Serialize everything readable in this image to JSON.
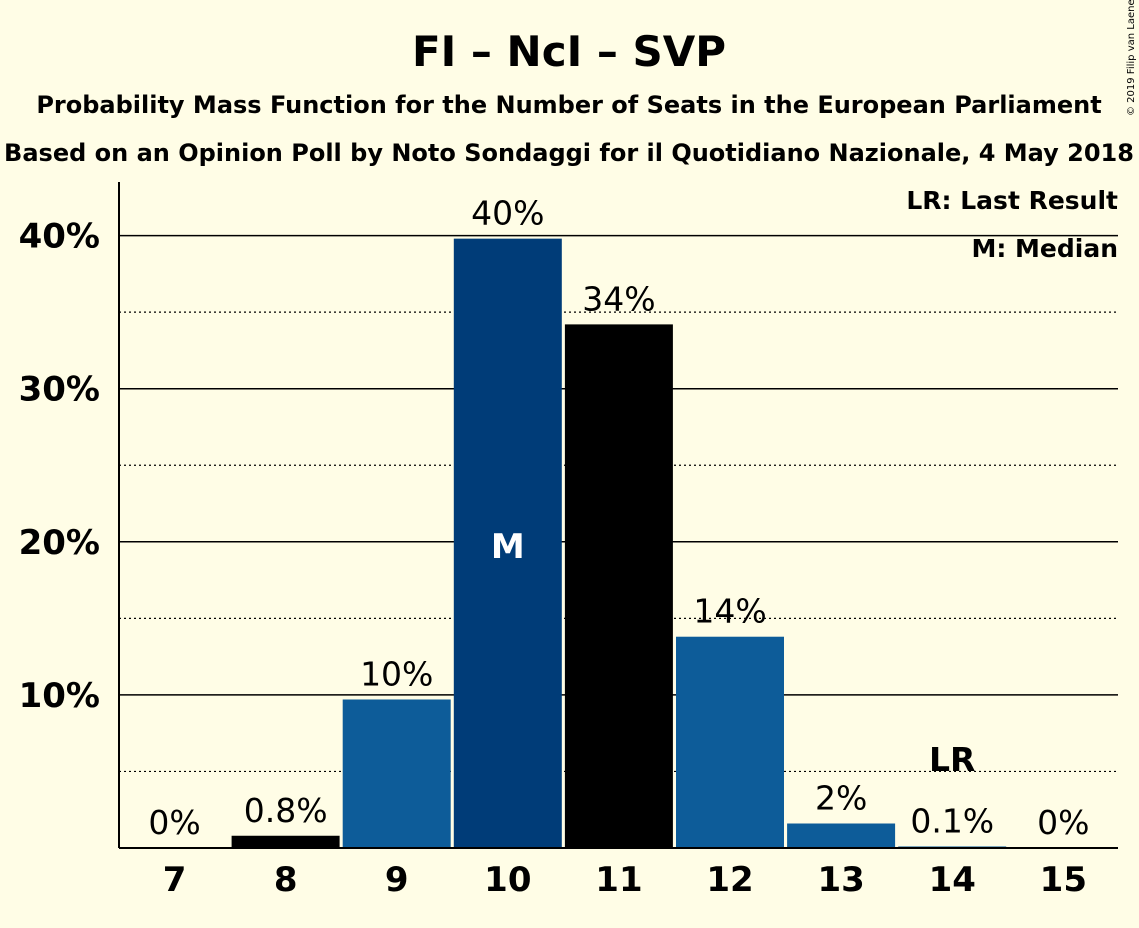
{
  "copyright": "© 2019 Filip van Laenen",
  "chart_data": {
    "type": "bar",
    "title": "FI – NcI – SVP",
    "subtitle_1": "Probability Mass Function for the Number of Seats in the European Parliament",
    "subtitle_2": "Based on an Opinion Poll by Noto Sondaggi for il Quotidiano Nazionale, 4 May 2018",
    "xlabel": "",
    "ylabel": "",
    "categories": [
      "7",
      "8",
      "9",
      "10",
      "11",
      "12",
      "13",
      "14",
      "15"
    ],
    "values": [
      0,
      0.8,
      9.7,
      39.8,
      34.2,
      13.8,
      1.6,
      0.1,
      0
    ],
    "value_labels": [
      "0%",
      "0.8%",
      "10%",
      "40%",
      "34%",
      "14%",
      "2%",
      "0.1%",
      "0%"
    ],
    "bar_colors": [
      "#0d5c99",
      "#000000",
      "#0d5c99",
      "#003c78",
      "#000000",
      "#0d5c99",
      "#0d5c99",
      "#0d5c99",
      "#0d5c99"
    ],
    "median_index": 3,
    "median_marker": "M",
    "last_result_index": 7,
    "last_result_marker": "LR",
    "ylim": [
      0,
      43.5
    ],
    "yticks": [
      10,
      20,
      30,
      40
    ],
    "ytick_labels": [
      "10%",
      "20%",
      "30%",
      "40%"
    ],
    "minor_gridlines": [
      5,
      15,
      25,
      35
    ],
    "grid": true,
    "legend_position": "top-right",
    "legend": [
      "LR: Last Result",
      "M: Median"
    ]
  }
}
